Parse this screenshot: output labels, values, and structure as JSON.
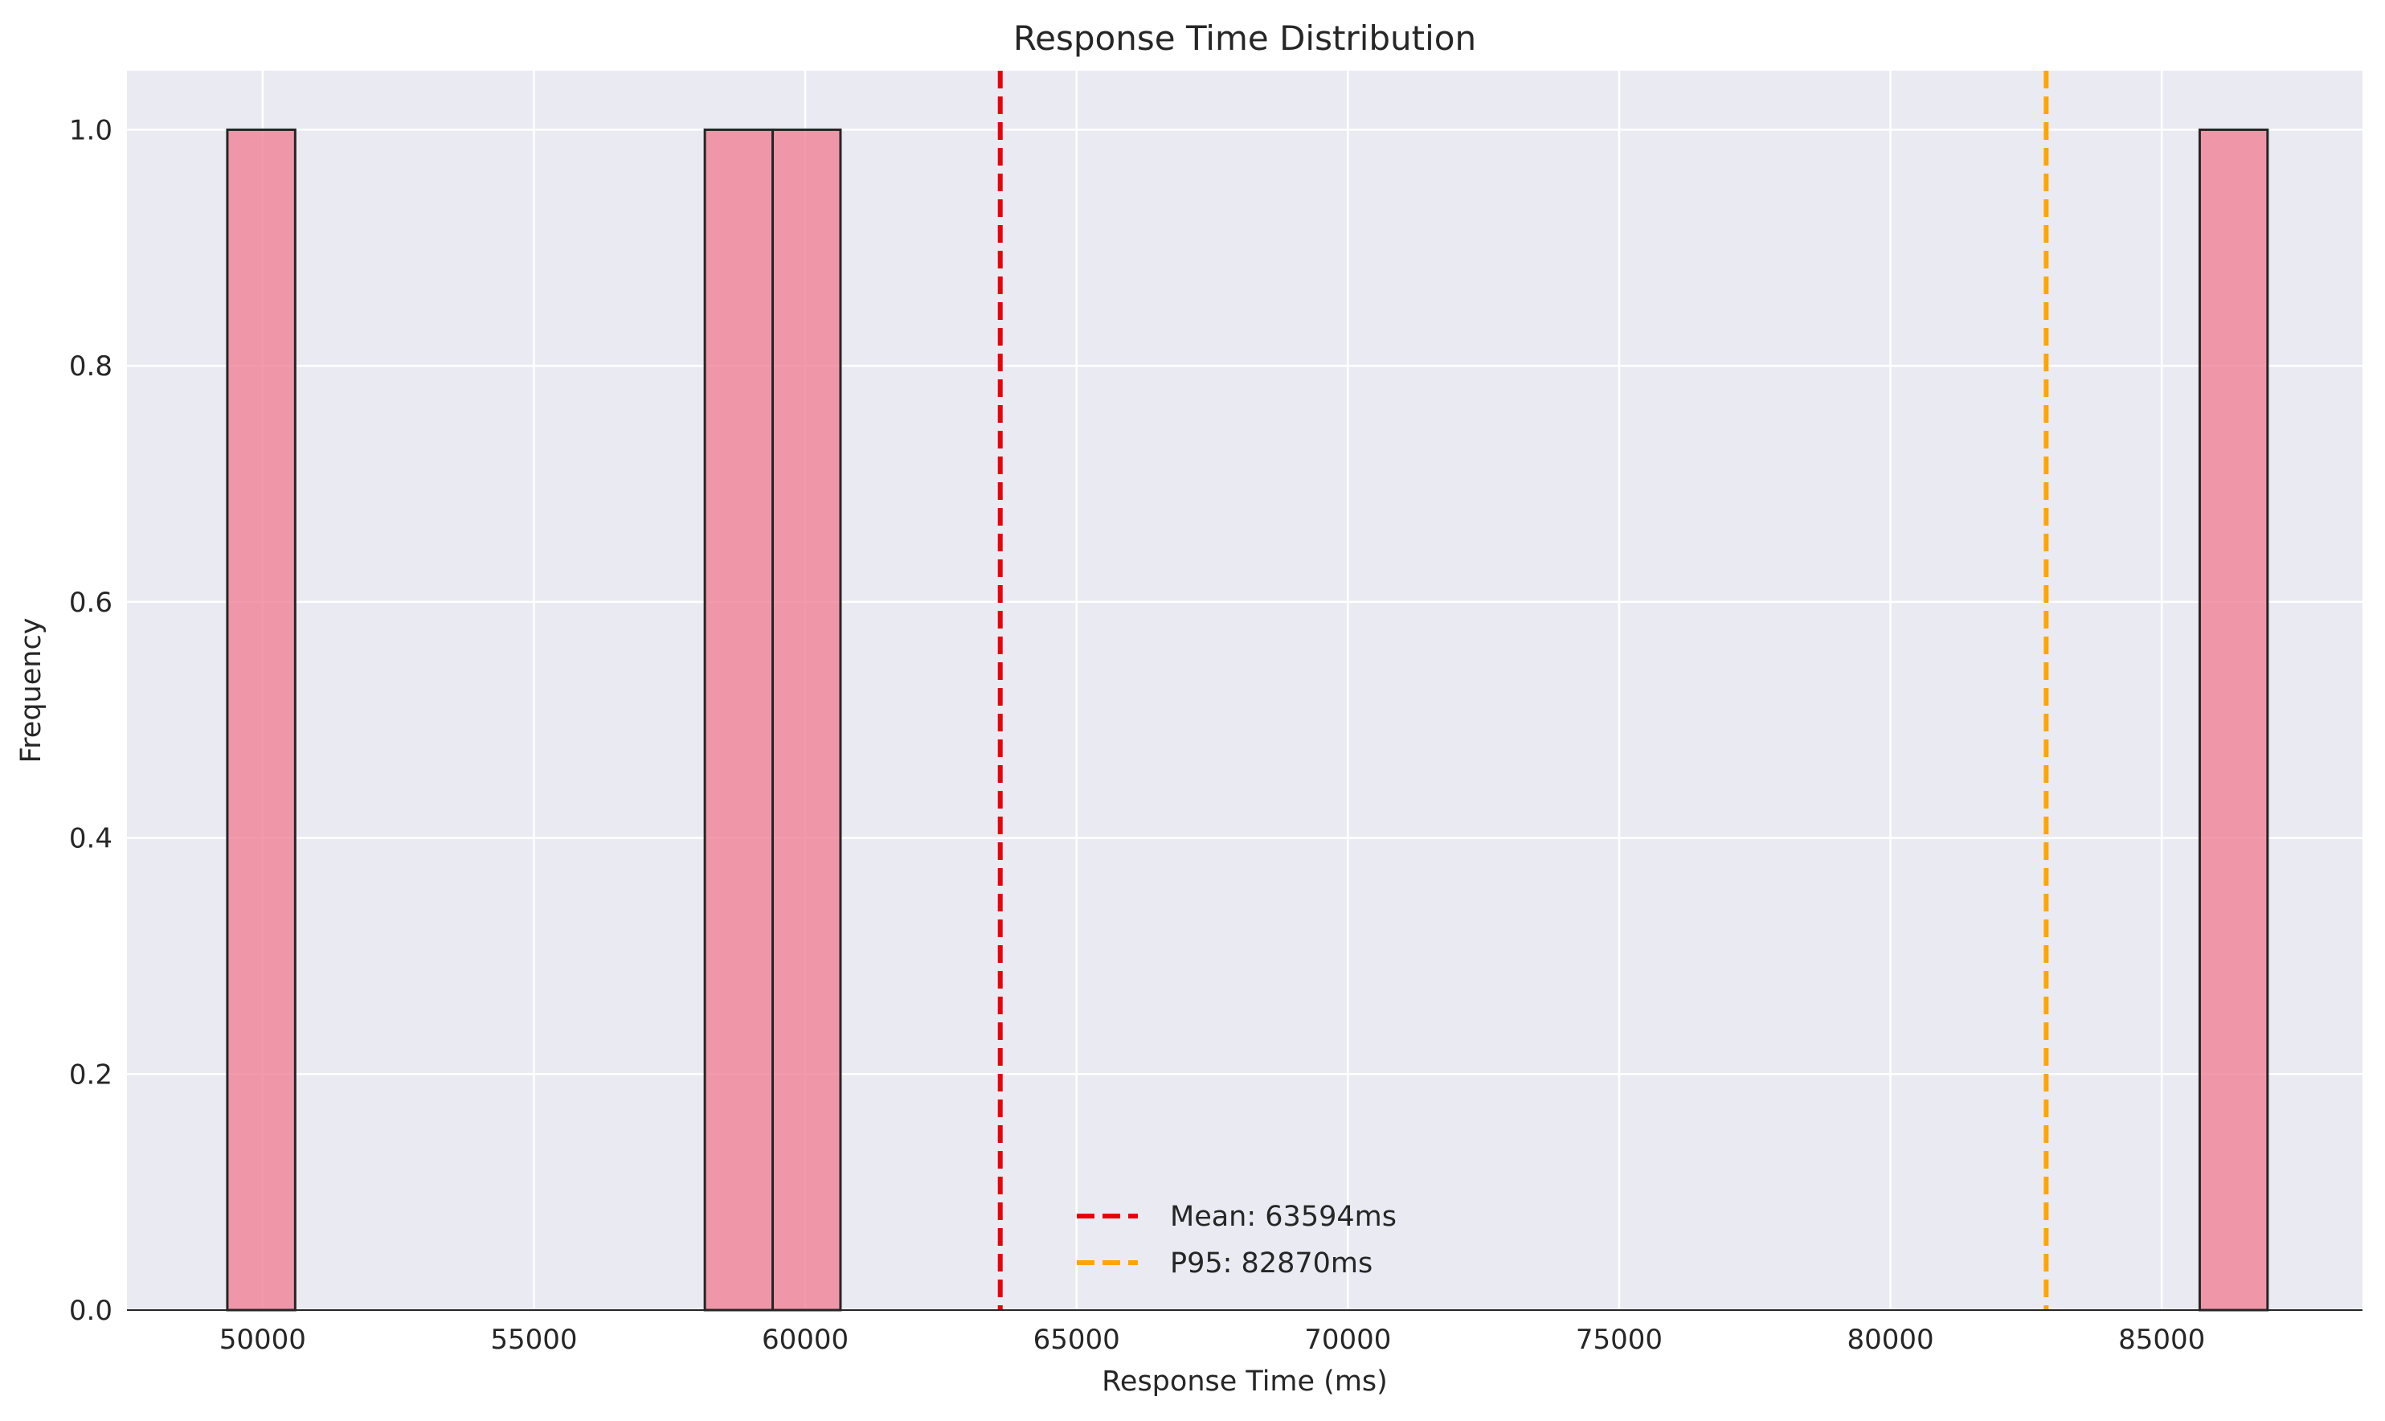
{
  "chart_data": {
    "type": "bar",
    "subtype": "histogram",
    "title": "Response Time Distribution",
    "xlabel": "Response Time (ms)",
    "ylabel": "Frequency",
    "xlim": [
      47500,
      88700
    ],
    "ylim": [
      0,
      1.05
    ],
    "xticks": [
      50000,
      55000,
      60000,
      65000,
      70000,
      75000,
      80000,
      85000
    ],
    "yticks": [
      0.0,
      0.2,
      0.4,
      0.6,
      0.8,
      1.0
    ],
    "grid": true,
    "bins": [
      {
        "start": 49350,
        "end": 50600,
        "count": 1
      },
      {
        "start": 58150,
        "end": 59400,
        "count": 1
      },
      {
        "start": 59400,
        "end": 60650,
        "count": 1
      },
      {
        "start": 85700,
        "end": 86950,
        "count": 1
      }
    ],
    "reference_lines": [
      {
        "label": "Mean: 63594ms",
        "x": 63594,
        "color": "#e8000b",
        "style": "dashed"
      },
      {
        "label": "P95: 82870ms",
        "x": 82870,
        "color": "#ffa500",
        "style": "dashed"
      }
    ],
    "legend_position": "bottom-center",
    "colors": {
      "bar_fill": "#f07f95",
      "bar_edge": "#262626",
      "plot_background": "#eaeaf2",
      "grid": "#ffffff"
    }
  }
}
